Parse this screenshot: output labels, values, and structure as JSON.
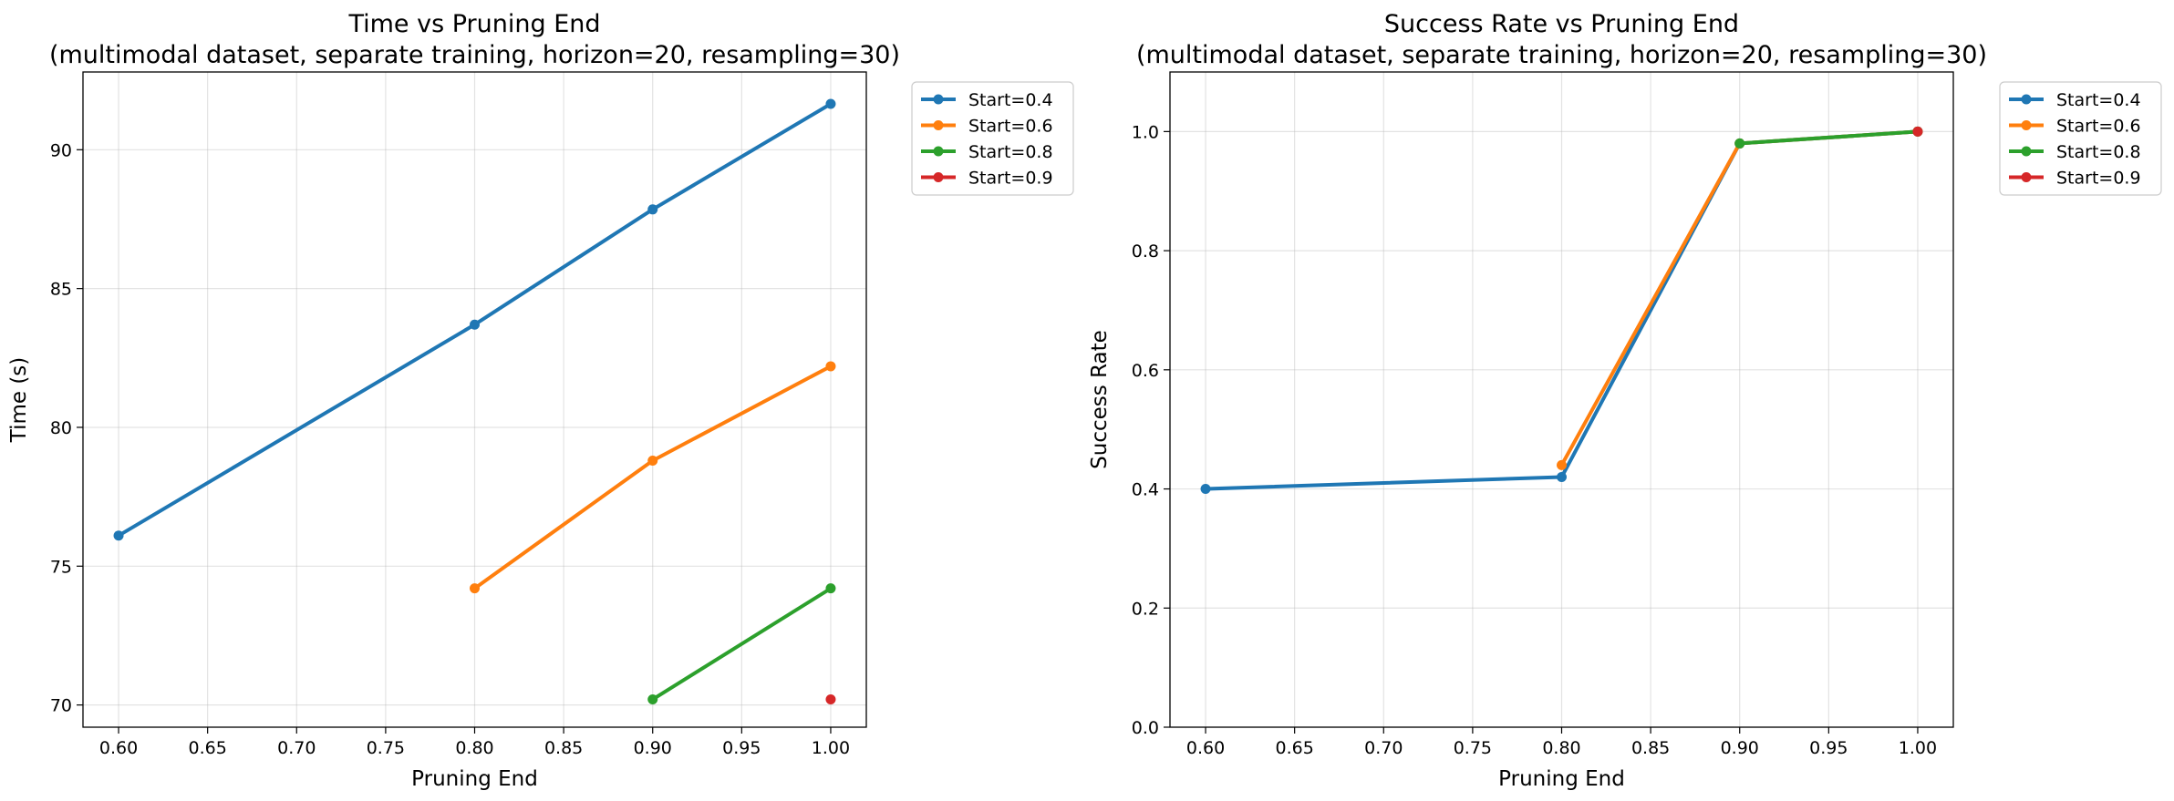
{
  "chart_data": [
    {
      "type": "line",
      "title": "Time vs Pruning End",
      "subtitle": "(multimodal dataset, separate training, horizon=20, resampling=30)",
      "xlabel": "Pruning End",
      "ylabel": "Time (s)",
      "xlim": [
        0.58,
        1.02
      ],
      "ylim": [
        69.2,
        92.8
      ],
      "xticks": [
        0.6,
        0.65,
        0.7,
        0.75,
        0.8,
        0.85,
        0.9,
        0.95,
        1.0
      ],
      "xtick_labels": [
        "0.60",
        "0.65",
        "0.70",
        "0.75",
        "0.80",
        "0.85",
        "0.90",
        "0.95",
        "1.00"
      ],
      "yticks": [
        70,
        75,
        80,
        85,
        90
      ],
      "ytick_labels": [
        "70",
        "75",
        "80",
        "85",
        "90"
      ],
      "grid": true,
      "legend_position": "outside-top-right",
      "series": [
        {
          "name": "Start=0.4",
          "color": "#1f77b4",
          "x": [
            0.6,
            0.8,
            0.9,
            1.0
          ],
          "y": [
            76.1,
            83.7,
            87.85,
            91.65
          ]
        },
        {
          "name": "Start=0.6",
          "color": "#ff7f0e",
          "x": [
            0.8,
            0.9,
            1.0
          ],
          "y": [
            74.2,
            78.8,
            82.2
          ]
        },
        {
          "name": "Start=0.8",
          "color": "#2ca02c",
          "x": [
            0.9,
            1.0
          ],
          "y": [
            70.2,
            74.2
          ]
        },
        {
          "name": "Start=0.9",
          "color": "#d62728",
          "x": [
            1.0
          ],
          "y": [
            70.2
          ]
        }
      ]
    },
    {
      "type": "line",
      "title": "Success Rate vs Pruning End",
      "subtitle": "(multimodal dataset, separate training, horizon=20, resampling=30)",
      "xlabel": "Pruning End",
      "ylabel": "Success Rate",
      "xlim": [
        0.58,
        1.02
      ],
      "ylim": [
        0.0,
        1.1
      ],
      "xticks": [
        0.6,
        0.65,
        0.7,
        0.75,
        0.8,
        0.85,
        0.9,
        0.95,
        1.0
      ],
      "xtick_labels": [
        "0.60",
        "0.65",
        "0.70",
        "0.75",
        "0.80",
        "0.85",
        "0.90",
        "0.95",
        "1.00"
      ],
      "yticks": [
        0.0,
        0.2,
        0.4,
        0.6,
        0.8,
        1.0
      ],
      "ytick_labels": [
        "0.0",
        "0.2",
        "0.4",
        "0.6",
        "0.8",
        "1.0"
      ],
      "grid": true,
      "legend_position": "outside-top-right",
      "series": [
        {
          "name": "Start=0.4",
          "color": "#1f77b4",
          "x": [
            0.6,
            0.8,
            0.9,
            1.0
          ],
          "y": [
            0.4,
            0.42,
            0.98,
            1.0
          ]
        },
        {
          "name": "Start=0.6",
          "color": "#ff7f0e",
          "x": [
            0.8,
            0.9,
            1.0
          ],
          "y": [
            0.44,
            0.98,
            1.0
          ]
        },
        {
          "name": "Start=0.8",
          "color": "#2ca02c",
          "x": [
            0.9,
            1.0
          ],
          "y": [
            0.98,
            1.0
          ]
        },
        {
          "name": "Start=0.9",
          "color": "#d62728",
          "x": [
            1.0
          ],
          "y": [
            1.0
          ]
        }
      ]
    }
  ]
}
